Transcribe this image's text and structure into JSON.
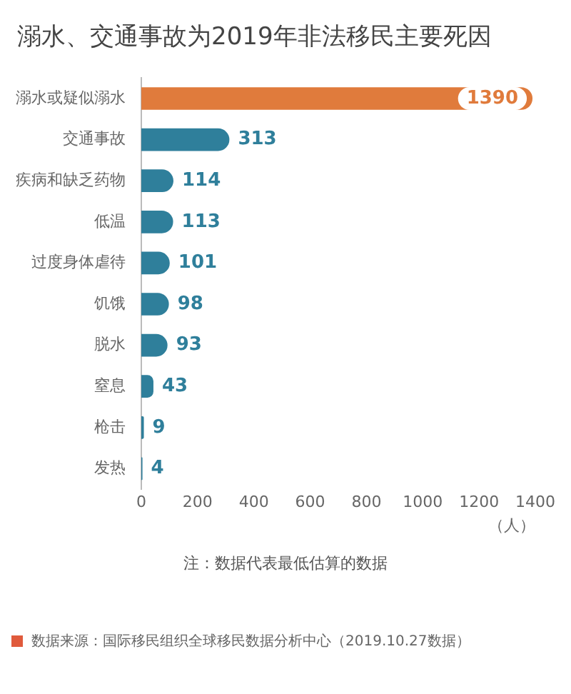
{
  "chart_data": {
    "type": "bar",
    "orientation": "horizontal",
    "title": "溺水、交通事故为2019年非法移民主要死因",
    "xlabel": "（人）",
    "categories": [
      "溺水或疑似溺水",
      "交通事故",
      "疾病和缺乏药物",
      "低温",
      "过度身体虐待",
      "饥饿",
      "脱水",
      "窒息",
      "枪击",
      "发热"
    ],
    "values": [
      1390,
      313,
      114,
      113,
      101,
      98,
      93,
      43,
      9,
      4
    ],
    "colors": [
      "#e07b3c",
      "#2f7f9b",
      "#2f7f9b",
      "#2f7f9b",
      "#2f7f9b",
      "#2f7f9b",
      "#2f7f9b",
      "#2f7f9b",
      "#2f7f9b",
      "#2f7f9b"
    ],
    "xlim": [
      0,
      1400
    ],
    "xticks": [
      0,
      200,
      400,
      600,
      800,
      1000,
      1200,
      1400
    ],
    "data_labels": true,
    "grid": false,
    "legend": false,
    "annotations": [
      "注：数据代表最低估算的数据",
      "数据来源：国际移民组织全球移民数据分析中心（2019.10.27数据）"
    ]
  }
}
